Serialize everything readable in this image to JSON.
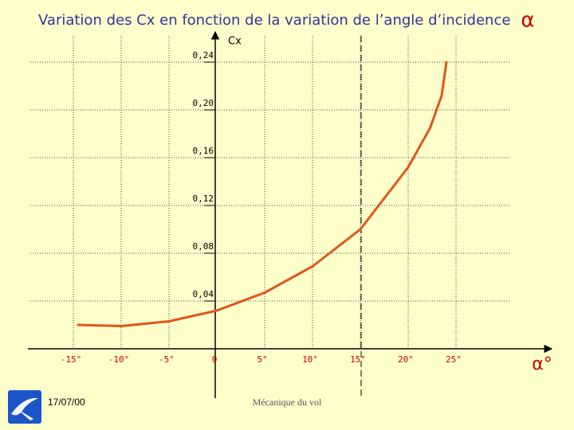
{
  "chart_data": {
    "type": "line",
    "title": "Variation des Cx en fonction de la variation de l’angle d’incidence",
    "title_symbol": "α",
    "y_label": "Cx",
    "x_label": "α°",
    "x": [
      -14.5,
      -10,
      -5,
      0,
      5,
      10,
      15,
      20,
      22.3,
      23.5,
      24
    ],
    "series": [
      {
        "color": "#e0561b",
        "values": [
          0.02,
          0.019,
          0.023,
          0.032,
          0.047,
          0.069,
          0.1,
          0.152,
          0.185,
          0.212,
          0.24
        ]
      }
    ],
    "xlim": [
      -20,
      35
    ],
    "ylim": [
      0,
      0.26
    ],
    "xticks": [
      {
        "value": -15,
        "label": "-15°"
      },
      {
        "value": -10,
        "label": "-10°"
      },
      {
        "value": -5,
        "label": "-5°"
      },
      0,
      {
        "value": 5,
        "label": "5°"
      },
      {
        "value": 10,
        "label": "10°"
      },
      {
        "value": 15,
        "label": "15°"
      },
      {
        "value": 20,
        "label": "20°"
      },
      {
        "value": 25,
        "label": "25°"
      }
    ],
    "yticks": [
      {
        "value": 0.04,
        "label": "0,04"
      },
      {
        "value": 0.08,
        "label": "0,08"
      },
      {
        "value": 0.12,
        "label": "0,12"
      },
      {
        "value": 0.16,
        "label": "0,16"
      },
      {
        "value": 0.2,
        "label": "0,20"
      },
      {
        "value": 0.24,
        "label": "0,24"
      }
    ],
    "grid": true
  },
  "footer": {
    "date": "17/07/00",
    "text": "Mécanique du vol"
  }
}
